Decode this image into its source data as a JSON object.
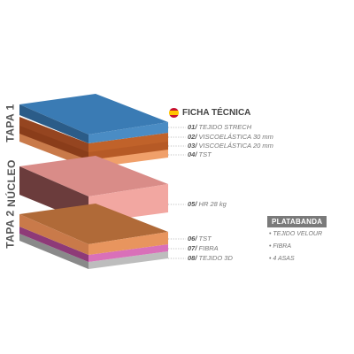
{
  "side_labels": {
    "tapa1": "TAPA 1",
    "nucleo": "NÚCLEO",
    "tapa2": "TAPA 2"
  },
  "header": {
    "title": "FICHA TÉCNICA",
    "flag_icon": "spain-flag-icon"
  },
  "layers": [
    {
      "num": "01/",
      "text": "TEJIDO STRECH",
      "color": "#3a7bb4"
    },
    {
      "num": "02/",
      "text": "VISCOELÁSTICA 30 mm",
      "color": "#c0622a"
    },
    {
      "num": "03/",
      "text": "VISCOELÁSTICA 20 mm",
      "color": "#b65a26"
    },
    {
      "num": "04/",
      "text": "TST",
      "color": "#f0a06a"
    },
    {
      "num": "05/",
      "text": "HR 28 kg",
      "color": "#f2a7a1"
    },
    {
      "num": "06/",
      "text": "TST",
      "color": "#e8955e"
    },
    {
      "num": "07/",
      "text": "FIBRA",
      "color": "#d970b9"
    },
    {
      "num": "08/",
      "text": "TEJIDO 3D",
      "color": "#bdbdbd"
    }
  ],
  "platabanda": {
    "title": "PLATABANDA",
    "items": [
      "• TEJIDO VELOUR",
      "• FIBRA",
      "• 4 ASAS"
    ]
  }
}
